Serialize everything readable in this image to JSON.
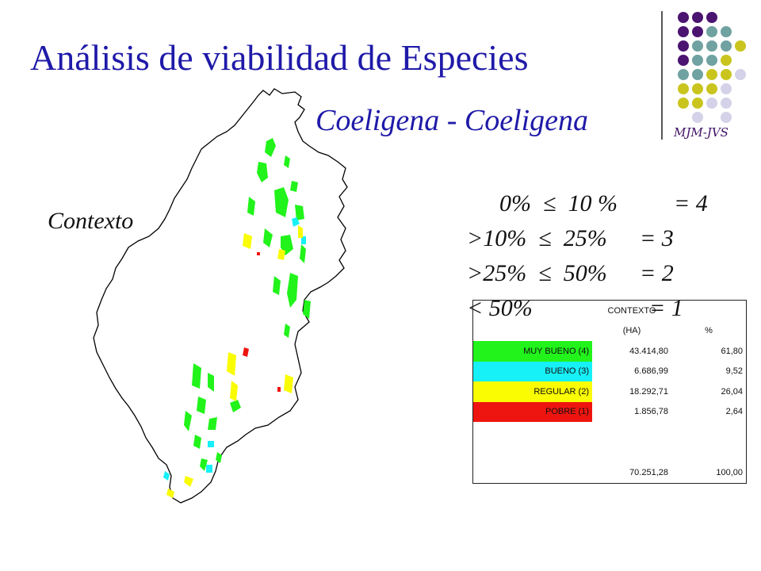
{
  "title": "Análisis de viabilidad de Especies",
  "subtitle": "Coeligena - Coeligena",
  "context_label": "Contexto",
  "logo_text": "MJM-JVS",
  "rules": [
    {
      "range": "  0%  ≤  10 %",
      "value": "= 4"
    },
    {
      "range": ">10%  ≤  25%",
      "value": "= 3"
    },
    {
      "range": ">25%  ≤  50%",
      "value": "= 2"
    },
    {
      "range": "< 50%",
      "value": "= 1"
    }
  ],
  "table": {
    "title": "CONTEXTO",
    "col_ha": "(HA)",
    "col_pct": "%",
    "rows": [
      {
        "label": "MUY BUENO (4)",
        "ha": "43.414,80",
        "pct": "61,80",
        "color": "#21f31b"
      },
      {
        "label": "BUENO (3)",
        "ha": "6.686,99",
        "pct": "9,52",
        "color": "#16f0f7"
      },
      {
        "label": "REGULAR (2)",
        "ha": "18.292,71",
        "pct": "26,04",
        "color": "#fafc02"
      },
      {
        "label": "POBRE (1)",
        "ha": "1.856,78",
        "pct": "2,64",
        "color": "#ee1510"
      }
    ],
    "total_ha": "70.251,28",
    "total_pct": "100,00"
  },
  "logo_colors": {
    "purple": "#4b1470",
    "teal": "#6fa2a0",
    "olive": "#c9c51e",
    "lavender": "#d4d2e8"
  }
}
